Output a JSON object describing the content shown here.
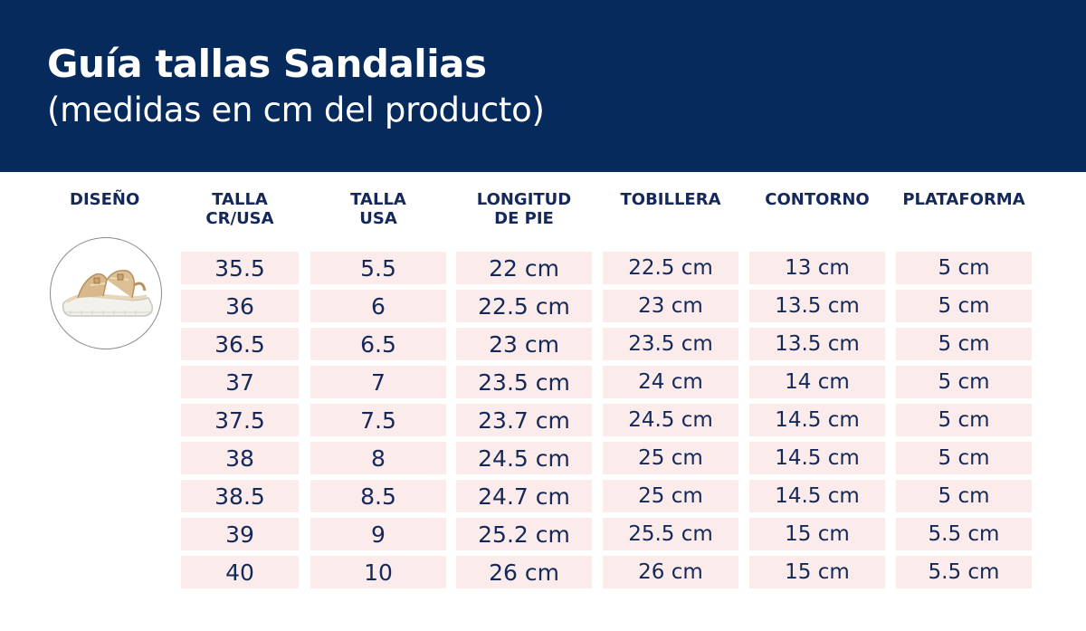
{
  "header": {
    "title": "Guía tallas Sandalias",
    "subtitle": "(medidas en cm del producto)"
  },
  "columns": {
    "design": "DISEÑO",
    "talla_cr_usa": [
      "TALLA",
      "CR/USA"
    ],
    "talla_usa": [
      "TALLA",
      "USA"
    ],
    "longitud": [
      "LONGITUD",
      "DE PIE"
    ],
    "tobillera": "TOBILLERA",
    "contorno": "CONTORNO",
    "plataforma": "PLATAFORMA"
  },
  "product_image": {
    "icon": "sandal-photo"
  },
  "rows": [
    [
      "35.5",
      "5.5",
      "22 cm",
      "22.5 cm",
      "13 cm",
      "5 cm"
    ],
    [
      "36",
      "6",
      "22.5 cm",
      "23 cm",
      "13.5 cm",
      "5 cm"
    ],
    [
      "36.5",
      "6.5",
      "23 cm",
      "23.5 cm",
      "13.5 cm",
      "5 cm"
    ],
    [
      "37",
      "7",
      "23.5 cm",
      "24 cm",
      "14 cm",
      "5 cm"
    ],
    [
      "37.5",
      "7.5",
      "23.7 cm",
      "24.5 cm",
      "14.5 cm",
      "5 cm"
    ],
    [
      "38",
      "8",
      "24.5 cm",
      "25 cm",
      "14.5 cm",
      "5 cm"
    ],
    [
      "38.5",
      "8.5",
      "24.7 cm",
      "25 cm",
      "14.5 cm",
      "5 cm"
    ],
    [
      "39",
      "9",
      "25.2 cm",
      "25.5 cm",
      "15 cm",
      "5.5 cm"
    ],
    [
      "40",
      "10",
      "26 cm",
      "26 cm",
      "15 cm",
      "5.5 cm"
    ]
  ]
}
